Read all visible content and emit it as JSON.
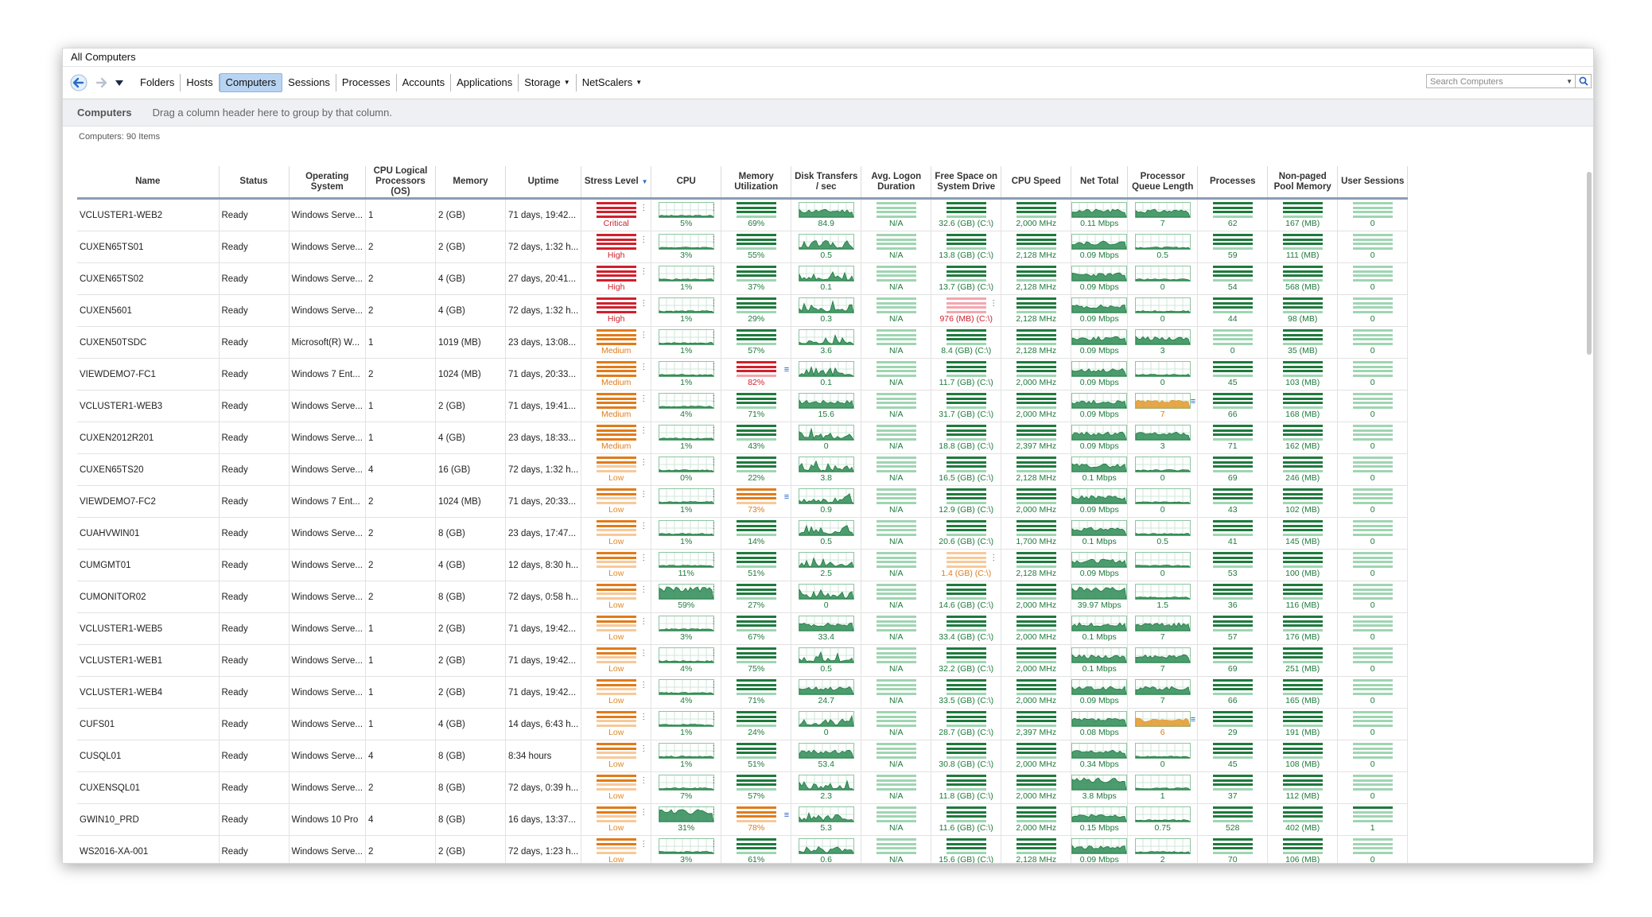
{
  "window": {
    "title": "All Computers"
  },
  "toolbar": {
    "tabs": [
      {
        "label": "Folders",
        "active": false,
        "dropdown": false
      },
      {
        "label": "Hosts",
        "active": false,
        "dropdown": false
      },
      {
        "label": "Computers",
        "active": true,
        "dropdown": false
      },
      {
        "label": "Sessions",
        "active": false,
        "dropdown": false
      },
      {
        "label": "Processes",
        "active": false,
        "dropdown": false
      },
      {
        "label": "Accounts",
        "active": false,
        "dropdown": false
      },
      {
        "label": "Applications",
        "active": false,
        "dropdown": false
      },
      {
        "label": "Storage",
        "active": false,
        "dropdown": true
      },
      {
        "label": "NetScalers",
        "active": false,
        "dropdown": true
      }
    ],
    "search_placeholder": "Search Computers",
    "icons": {
      "back": "back-arrow-icon",
      "forward": "forward-arrow-icon",
      "menu": "dropdown-triangle-icon",
      "search": "search-icon"
    }
  },
  "groupbar": {
    "title": "Computers",
    "hint": "Drag a column header here to group by that column."
  },
  "count": "Computers: 90 Items",
  "colors": {
    "green": "#1e7a3c",
    "lightgreen": "#9fd5b2",
    "red": "#d0202c",
    "lightred": "#f3a6ad",
    "orange": "#e07b1a",
    "lightorange": "#f7c99a",
    "accent": "#1f5fc8"
  },
  "columns": [
    "Name",
    "Status",
    "Operating System",
    "CPU Logical Processors (OS)",
    "Memory",
    "Uptime",
    "Stress Level",
    "CPU",
    "Memory Utilization",
    "Disk Transfers / sec",
    "Avg. Logon Duration",
    "Free Space on System Drive",
    "CPU Speed",
    "Net Total",
    "Processor Queue Length",
    "Processes",
    "Non-paged Pool Memory",
    "User Sessions"
  ],
  "rows": [
    {
      "name": "VCLUSTER1-WEB2",
      "status": "Ready",
      "os": "Windows Serve...",
      "cpus": "1",
      "memory": "2 (GB)",
      "uptime": "71 days, 19:42...",
      "stress": "Critical",
      "stress_level": "critical",
      "cpu": "5%",
      "mem": "69%",
      "mem_level": "normal",
      "disk": "84.9",
      "logon": "N/A",
      "free": "32.6 (GB) (C:\\)",
      "free_level": "normal",
      "speed": "2,000 MHz",
      "net": "0.11 Mbps",
      "queue": "7",
      "queue_level": "normal",
      "procs": "62",
      "pool": "167 (MB)",
      "sessions": "0"
    },
    {
      "name": "CUXEN65TS01",
      "status": "Ready",
      "os": "Windows Serve...",
      "cpus": "2",
      "memory": "2 (GB)",
      "uptime": "72 days, 1:32 h...",
      "stress": "High",
      "stress_level": "high",
      "cpu": "3%",
      "mem": "55%",
      "mem_level": "normal",
      "disk": "0.5",
      "logon": "N/A",
      "free": "13.8 (GB) (C:\\)",
      "free_level": "normal",
      "speed": "2,128 MHz",
      "net": "0.09 Mbps",
      "queue": "0.5",
      "queue_level": "normal",
      "procs": "59",
      "pool": "111 (MB)",
      "sessions": "0"
    },
    {
      "name": "CUXEN65TS02",
      "status": "Ready",
      "os": "Windows Serve...",
      "cpus": "2",
      "memory": "4 (GB)",
      "uptime": "27 days, 20:41...",
      "stress": "High",
      "stress_level": "high",
      "cpu": "1%",
      "mem": "37%",
      "mem_level": "normal",
      "disk": "0.1",
      "logon": "N/A",
      "free": "13.7 (GB) (C:\\)",
      "free_level": "normal",
      "speed": "2,128 MHz",
      "net": "0.09 Mbps",
      "queue": "0",
      "queue_level": "normal",
      "procs": "54",
      "pool": "568 (MB)",
      "sessions": "0"
    },
    {
      "name": "CUXEN5601",
      "status": "Ready",
      "os": "Windows Serve...",
      "cpus": "2",
      "memory": "4 (GB)",
      "uptime": "72 days, 1:32 h...",
      "stress": "High",
      "stress_level": "high",
      "cpu": "1%",
      "mem": "29%",
      "mem_level": "normal",
      "disk": "0.3",
      "logon": "N/A",
      "free": "976 (MB) (C:\\)",
      "free_level": "critical",
      "speed": "2,128 MHz",
      "net": "0.09 Mbps",
      "queue": "0",
      "queue_level": "normal",
      "procs": "44",
      "pool": "98 (MB)",
      "sessions": "0"
    },
    {
      "name": "CUXEN50TSDC",
      "status": "Ready",
      "os": "Microsoft(R) W...",
      "cpus": "1",
      "memory": "1019 (MB)",
      "uptime": "23 days, 13:08...",
      "stress": "Medium",
      "stress_level": "medium",
      "cpu": "1%",
      "mem": "57%",
      "mem_level": "normal",
      "disk": "3.6",
      "logon": "N/A",
      "free": "8.4 (GB) (C:\\)",
      "free_level": "normal",
      "speed": "2,128 MHz",
      "net": "0.09 Mbps",
      "queue": "3",
      "queue_level": "normal",
      "procs": "0",
      "pool": "35 (MB)",
      "sessions": "0"
    },
    {
      "name": "VIEWDEMO7-FC1",
      "status": "Ready",
      "os": "Windows 7 Ent...",
      "cpus": "2",
      "memory": "1024 (MB)",
      "uptime": "71 days, 20:33...",
      "stress": "Medium",
      "stress_level": "medium",
      "cpu": "1%",
      "mem": "82%",
      "mem_level": "critical",
      "disk": "0.1",
      "logon": "N/A",
      "free": "11.7 (GB) (C:\\)",
      "free_level": "normal",
      "speed": "2,000 MHz",
      "net": "0.09 Mbps",
      "queue": "0",
      "queue_level": "normal",
      "procs": "45",
      "pool": "103 (MB)",
      "sessions": "0"
    },
    {
      "name": "VCLUSTER1-WEB3",
      "status": "Ready",
      "os": "Windows Serve...",
      "cpus": "1",
      "memory": "2 (GB)",
      "uptime": "71 days, 19:41...",
      "stress": "Medium",
      "stress_level": "medium",
      "cpu": "4%",
      "mem": "71%",
      "mem_level": "normal",
      "disk": "15.6",
      "logon": "N/A",
      "free": "31.7 (GB) (C:\\)",
      "free_level": "normal",
      "speed": "2,000 MHz",
      "net": "0.09 Mbps",
      "queue": "7",
      "queue_level": "warning",
      "procs": "66",
      "pool": "168 (MB)",
      "sessions": "0"
    },
    {
      "name": "CUXEN2012R201",
      "status": "Ready",
      "os": "Windows Serve...",
      "cpus": "1",
      "memory": "4 (GB)",
      "uptime": "23 days, 18:33...",
      "stress": "Medium",
      "stress_level": "medium",
      "cpu": "1%",
      "mem": "43%",
      "mem_level": "normal",
      "disk": "0",
      "logon": "N/A",
      "free": "18.8 (GB) (C:\\)",
      "free_level": "normal",
      "speed": "2,397 MHz",
      "net": "0.09 Mbps",
      "queue": "3",
      "queue_level": "normal",
      "procs": "71",
      "pool": "162 (MB)",
      "sessions": "0"
    },
    {
      "name": "CUXEN65TS20",
      "status": "Ready",
      "os": "Windows Serve...",
      "cpus": "4",
      "memory": "16 (GB)",
      "uptime": "72 days, 1:32 h...",
      "stress": "Low",
      "stress_level": "low",
      "cpu": "0%",
      "mem": "22%",
      "mem_level": "normal",
      "disk": "3.8",
      "logon": "N/A",
      "free": "16.5 (GB) (C:\\)",
      "free_level": "normal",
      "speed": "2,128 MHz",
      "net": "0.1 Mbps",
      "queue": "0",
      "queue_level": "normal",
      "procs": "69",
      "pool": "246 (MB)",
      "sessions": "0"
    },
    {
      "name": "VIEWDEMO7-FC2",
      "status": "Ready",
      "os": "Windows 7 Ent...",
      "cpus": "2",
      "memory": "1024 (MB)",
      "uptime": "71 days, 20:33...",
      "stress": "Low",
      "stress_level": "low",
      "cpu": "1%",
      "mem": "73%",
      "mem_level": "warning",
      "disk": "0.9",
      "logon": "N/A",
      "free": "12.9 (GB) (C:\\)",
      "free_level": "normal",
      "speed": "2,000 MHz",
      "net": "0.09 Mbps",
      "queue": "0",
      "queue_level": "normal",
      "procs": "43",
      "pool": "102 (MB)",
      "sessions": "0"
    },
    {
      "name": "CUAHVWIN01",
      "status": "Ready",
      "os": "Windows Serve...",
      "cpus": "2",
      "memory": "8 (GB)",
      "uptime": "23 days, 17:47...",
      "stress": "Low",
      "stress_level": "low",
      "cpu": "1%",
      "mem": "14%",
      "mem_level": "normal",
      "disk": "0.5",
      "logon": "N/A",
      "free": "20.6 (GB) (C:\\)",
      "free_level": "normal",
      "speed": "1,700 MHz",
      "net": "0.1 Mbps",
      "queue": "0.5",
      "queue_level": "normal",
      "procs": "41",
      "pool": "145 (MB)",
      "sessions": "0"
    },
    {
      "name": "CUMGMT01",
      "status": "Ready",
      "os": "Windows Serve...",
      "cpus": "2",
      "memory": "4 (GB)",
      "uptime": "12 days, 8:30 h...",
      "stress": "Low",
      "stress_level": "low",
      "cpu": "11%",
      "mem": "51%",
      "mem_level": "normal",
      "disk": "2.5",
      "logon": "N/A",
      "free": "1.4 (GB) (C:\\)",
      "free_level": "warning",
      "speed": "2,128 MHz",
      "net": "0.09 Mbps",
      "queue": "0",
      "queue_level": "normal",
      "procs": "53",
      "pool": "100 (MB)",
      "sessions": "0"
    },
    {
      "name": "CUMONITOR02",
      "status": "Ready",
      "os": "Windows Serve...",
      "cpus": "2",
      "memory": "8 (GB)",
      "uptime": "72 days, 0:58 h...",
      "stress": "Low",
      "stress_level": "low",
      "cpu": "59%",
      "mem": "27%",
      "mem_level": "normal",
      "disk": "0",
      "logon": "N/A",
      "free": "14.6 (GB) (C:\\)",
      "free_level": "normal",
      "speed": "2,000 MHz",
      "net": "39.97 Mbps",
      "queue": "1.5",
      "queue_level": "normal",
      "procs": "36",
      "pool": "116 (MB)",
      "sessions": "0"
    },
    {
      "name": "VCLUSTER1-WEB5",
      "status": "Ready",
      "os": "Windows Serve...",
      "cpus": "1",
      "memory": "2 (GB)",
      "uptime": "71 days, 19:42...",
      "stress": "Low",
      "stress_level": "low",
      "cpu": "3%",
      "mem": "67%",
      "mem_level": "normal",
      "disk": "33.4",
      "logon": "N/A",
      "free": "33.4 (GB) (C:\\)",
      "free_level": "normal",
      "speed": "2,000 MHz",
      "net": "0.1 Mbps",
      "queue": "7",
      "queue_level": "normal",
      "procs": "57",
      "pool": "176 (MB)",
      "sessions": "0"
    },
    {
      "name": "VCLUSTER1-WEB1",
      "status": "Ready",
      "os": "Windows Serve...",
      "cpus": "1",
      "memory": "2 (GB)",
      "uptime": "71 days, 19:42...",
      "stress": "Low",
      "stress_level": "low",
      "cpu": "4%",
      "mem": "75%",
      "mem_level": "normal",
      "disk": "0.5",
      "logon": "N/A",
      "free": "32.2 (GB) (C:\\)",
      "free_level": "normal",
      "speed": "2,000 MHz",
      "net": "0.1 Mbps",
      "queue": "7",
      "queue_level": "normal",
      "procs": "69",
      "pool": "251 (MB)",
      "sessions": "0"
    },
    {
      "name": "VCLUSTER1-WEB4",
      "status": "Ready",
      "os": "Windows Serve...",
      "cpus": "1",
      "memory": "2 (GB)",
      "uptime": "71 days, 19:42...",
      "stress": "Low",
      "stress_level": "low",
      "cpu": "4%",
      "mem": "71%",
      "mem_level": "normal",
      "disk": "24.7",
      "logon": "N/A",
      "free": "33.5 (GB) (C:\\)",
      "free_level": "normal",
      "speed": "2,000 MHz",
      "net": "0.09 Mbps",
      "queue": "7",
      "queue_level": "normal",
      "procs": "66",
      "pool": "165 (MB)",
      "sessions": "0"
    },
    {
      "name": "CUFS01",
      "status": "Ready",
      "os": "Windows Serve...",
      "cpus": "1",
      "memory": "4 (GB)",
      "uptime": "14 days, 6:43 h...",
      "stress": "Low",
      "stress_level": "low",
      "cpu": "1%",
      "mem": "24%",
      "mem_level": "normal",
      "disk": "0",
      "logon": "N/A",
      "free": "28.7 (GB) (C:\\)",
      "free_level": "normal",
      "speed": "2,397 MHz",
      "net": "0.08 Mbps",
      "queue": "6",
      "queue_level": "warning",
      "procs": "29",
      "pool": "191 (MB)",
      "sessions": "0"
    },
    {
      "name": "CUSQL01",
      "status": "Ready",
      "os": "Windows Serve...",
      "cpus": "4",
      "memory": "8 (GB)",
      "uptime": "8:34 hours",
      "stress": "Low",
      "stress_level": "low",
      "cpu": "1%",
      "mem": "51%",
      "mem_level": "normal",
      "disk": "53.4",
      "logon": "N/A",
      "free": "30.8 (GB) (C:\\)",
      "free_level": "normal",
      "speed": "2,000 MHz",
      "net": "0.34 Mbps",
      "queue": "0",
      "queue_level": "normal",
      "procs": "45",
      "pool": "108 (MB)",
      "sessions": "0"
    },
    {
      "name": "CUXENSQL01",
      "status": "Ready",
      "os": "Windows Serve...",
      "cpus": "2",
      "memory": "8 (GB)",
      "uptime": "72 days, 0:39 h...",
      "stress": "Low",
      "stress_level": "low",
      "cpu": "7%",
      "mem": "57%",
      "mem_level": "normal",
      "disk": "2.3",
      "logon": "N/A",
      "free": "11.8 (GB) (C:\\)",
      "free_level": "normal",
      "speed": "2,000 MHz",
      "net": "3.8 Mbps",
      "queue": "1",
      "queue_level": "normal",
      "procs": "37",
      "pool": "112 (MB)",
      "sessions": "0"
    },
    {
      "name": "GWIN10_PRD",
      "status": "Ready",
      "os": "Windows 10 Pro",
      "cpus": "4",
      "memory": "8 (GB)",
      "uptime": "16 days, 13:37...",
      "stress": "Low",
      "stress_level": "low",
      "cpu": "31%",
      "mem": "78%",
      "mem_level": "warning",
      "disk": "5.3",
      "logon": "N/A",
      "free": "11.6 (GB) (C:\\)",
      "free_level": "normal",
      "speed": "2,000 MHz",
      "net": "0.15 Mbps",
      "queue": "0.75",
      "queue_level": "normal",
      "procs": "528",
      "pool": "402 (MB)",
      "sessions": "1"
    },
    {
      "name": "WS2016-XA-001",
      "status": "Ready",
      "os": "Windows Serve...",
      "cpus": "2",
      "memory": "2 (GB)",
      "uptime": "72 days, 1:23 h...",
      "stress": "Low",
      "stress_level": "low",
      "cpu": "3%",
      "mem": "61%",
      "mem_level": "normal",
      "disk": "0.6",
      "logon": "N/A",
      "free": "15.6 (GB) (C:\\)",
      "free_level": "normal",
      "speed": "2,128 MHz",
      "net": "0.09 Mbps",
      "queue": "2",
      "queue_level": "normal",
      "procs": "70",
      "pool": "106 (MB)",
      "sessions": "0"
    }
  ]
}
